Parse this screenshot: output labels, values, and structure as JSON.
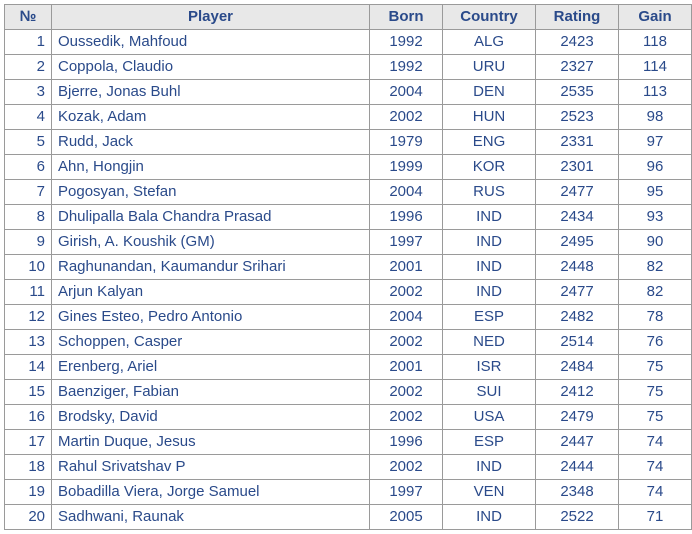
{
  "table": {
    "columns": [
      "№",
      "Player",
      "Born",
      "Country",
      "Rating",
      "Gain"
    ],
    "col_classes": [
      "col-num",
      "col-player",
      "col-born",
      "col-country",
      "col-rating",
      "col-gain"
    ],
    "header_bg": "#e8e8e8",
    "text_color": "#2a4a8a",
    "border_color": "#9a9a9a",
    "font_size": 15,
    "rows": [
      [
        "1",
        "Oussedik, Mahfoud",
        "1992",
        "ALG",
        "2423",
        "118"
      ],
      [
        "2",
        "Coppola, Claudio",
        "1992",
        "URU",
        "2327",
        "114"
      ],
      [
        "3",
        "Bjerre, Jonas Buhl",
        "2004",
        "DEN",
        "2535",
        "113"
      ],
      [
        "4",
        "Kozak, Adam",
        "2002",
        "HUN",
        "2523",
        "98"
      ],
      [
        "5",
        "Rudd, Jack",
        "1979",
        "ENG",
        "2331",
        "97"
      ],
      [
        "6",
        "Ahn, Hongjin",
        "1999",
        "KOR",
        "2301",
        "96"
      ],
      [
        "7",
        "Pogosyan, Stefan",
        "2004",
        "RUS",
        "2477",
        "95"
      ],
      [
        "8",
        "Dhulipalla Bala Chandra Prasad",
        "1996",
        "IND",
        "2434",
        "93"
      ],
      [
        "9",
        "Girish, A. Koushik (GM)",
        "1997",
        "IND",
        "2495",
        "90"
      ],
      [
        "10",
        "Raghunandan, Kaumandur Srihari",
        "2001",
        "IND",
        "2448",
        "82"
      ],
      [
        "11",
        "Arjun Kalyan",
        "2002",
        "IND",
        "2477",
        "82"
      ],
      [
        "12",
        "Gines Esteo, Pedro Antonio",
        "2004",
        "ESP",
        "2482",
        "78"
      ],
      [
        "13",
        "Schoppen, Casper",
        "2002",
        "NED",
        "2514",
        "76"
      ],
      [
        "14",
        "Erenberg, Ariel",
        "2001",
        "ISR",
        "2484",
        "75"
      ],
      [
        "15",
        "Baenziger, Fabian",
        "2002",
        "SUI",
        "2412",
        "75"
      ],
      [
        "16",
        "Brodsky, David",
        "2002",
        "USA",
        "2479",
        "75"
      ],
      [
        "17",
        "Martin Duque, Jesus",
        "1996",
        "ESP",
        "2447",
        "74"
      ],
      [
        "18",
        "Rahul Srivatshav P",
        "2002",
        "IND",
        "2444",
        "74"
      ],
      [
        "19",
        "Bobadilla Viera, Jorge Samuel",
        "1997",
        "VEN",
        "2348",
        "74"
      ],
      [
        "20",
        "Sadhwani, Raunak",
        "2005",
        "IND",
        "2522",
        "71"
      ]
    ]
  }
}
